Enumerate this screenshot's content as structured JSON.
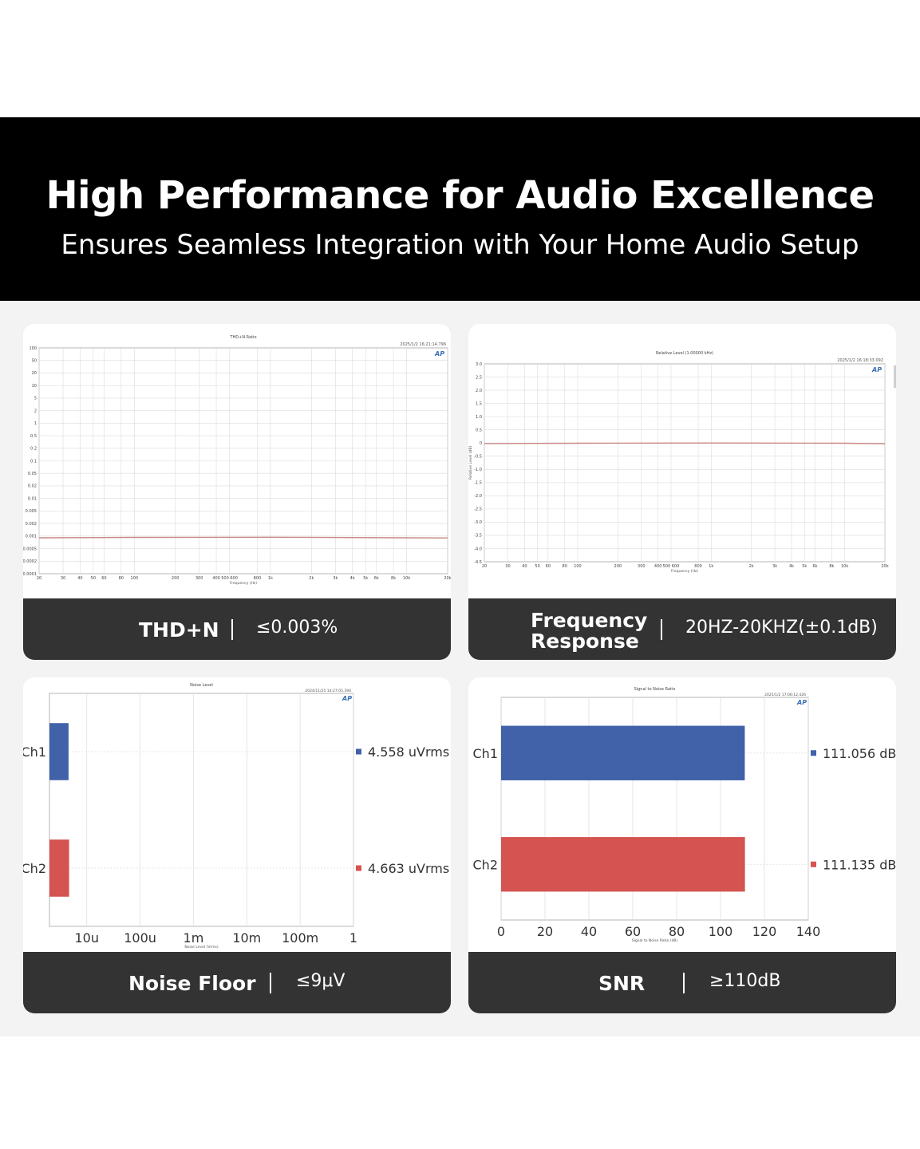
{
  "header": {
    "title": "High Performance for Audio Excellence",
    "subtitle": "Ensures Seamless Integration with Your Home Audio Setup"
  },
  "cards": [
    {
      "label_lines": [
        "THD+N"
      ],
      "value": "≤0.003%"
    },
    {
      "label_lines": [
        "Frequency",
        "Response"
      ],
      "value": "20HZ-20KHZ(±0.1dB)"
    },
    {
      "label_lines": [
        "Noise Floor"
      ],
      "value": "≤9μV"
    },
    {
      "label_lines": [
        "SNR"
      ],
      "value": "≥110dB"
    }
  ],
  "colors": {
    "ch1": "#4161a8",
    "ch2": "#d55350",
    "trace": "#c98a86",
    "grid": "#dcdcdc"
  },
  "chart_data": [
    {
      "type": "line",
      "title": "THD+N Ratio",
      "timestamp": "2025/1/2 16:21:14.796",
      "xlabel": "Frequency (Hz)",
      "yscale": "log",
      "xscale": "log",
      "yticks": [
        "100",
        "50",
        "20",
        "10",
        "5",
        "2",
        "1",
        "0.5",
        "0.2",
        "0.1",
        "0.05",
        "0.02",
        "0.01",
        "0.005",
        "0.002",
        "0.001",
        "0.0005",
        "0.0002",
        "0.0001"
      ],
      "xticks": [
        "20",
        "30",
        "40",
        "50",
        "60",
        "80",
        "100",
        "200",
        "300",
        "400",
        "500 600",
        "800",
        "1k",
        "2k",
        "3k",
        "4k",
        "5k",
        "6k",
        "8k",
        "10k",
        "20k"
      ],
      "x": [
        20,
        100,
        1000,
        10000,
        20000
      ],
      "y": [
        0.0009,
        0.00092,
        0.00093,
        0.0009,
        0.00089
      ]
    },
    {
      "type": "line",
      "title": "Relative Level (1.00000 kHz)",
      "timestamp": "2025/1/2 16:18:33.092",
      "xlabel": "Frequency (Hz)",
      "ylabel": "Relative Level (dB)",
      "xscale": "log",
      "ylim": [
        -4.5,
        3.0
      ],
      "yticks": [
        "3.0",
        "2.5",
        "2.0",
        "1.5",
        "1.0",
        "0.5",
        "0",
        "-0.5",
        "-1.0",
        "-1.5",
        "-2.0",
        "-2.5",
        "-3.0",
        "-3.5",
        "-4.0",
        "-4.5"
      ],
      "xticks": [
        "20",
        "30",
        "40",
        "50",
        "60",
        "80",
        "100",
        "200",
        "300",
        "400",
        "500 600",
        "800",
        "1k",
        "2k",
        "3k",
        "4k",
        "5k",
        "6k",
        "8k",
        "10k",
        "20k"
      ],
      "x": [
        20,
        100,
        1000,
        10000,
        20000
      ],
      "y": [
        -0.02,
        -0.01,
        0.0,
        -0.01,
        -0.03
      ]
    },
    {
      "type": "bar",
      "orientation": "horizontal",
      "title": "Noise Level",
      "timestamp": "2024/11/25 14:27:05.394",
      "xlabel": "Noise Level (Vrms)",
      "xscale": "log",
      "xticks": [
        "10u",
        "100u",
        "1m",
        "10m",
        "100m",
        "1"
      ],
      "categories": [
        "Ch1",
        "Ch2"
      ],
      "values": [
        4.558e-06,
        4.663e-06
      ],
      "value_labels": [
        "4.558  uVrms",
        "4.663  uVrms"
      ]
    },
    {
      "type": "bar",
      "orientation": "horizontal",
      "title": "Signal to Noise Ratio",
      "timestamp": "2025/1/2 17:06:12.426",
      "xlabel": "Signal to Noise Ratio (dB)",
      "xlim": [
        0,
        140
      ],
      "xticks": [
        "0",
        "20",
        "40",
        "60",
        "80",
        "100",
        "120",
        "140"
      ],
      "categories": [
        "Ch1",
        "Ch2"
      ],
      "values": [
        111.056,
        111.135
      ],
      "value_labels": [
        "111.056  dB",
        "111.135  dB"
      ]
    }
  ]
}
